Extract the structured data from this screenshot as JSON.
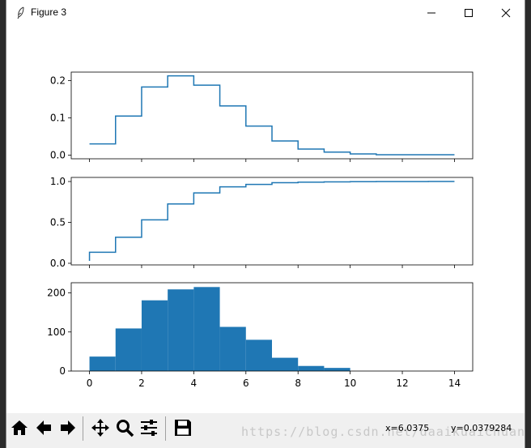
{
  "window": {
    "title": "Figure 3",
    "icon": "feather-icon",
    "controls": [
      "minimize-icon",
      "maximize-icon",
      "close-icon"
    ]
  },
  "toolbar": {
    "buttons": [
      "home-icon",
      "back-icon",
      "forward-icon",
      "pan-icon",
      "zoom-icon",
      "configure-subplots-icon",
      "save-icon"
    ],
    "x_readout": "x=6.0375",
    "y_readout": "y=0.0379284",
    "watermark": "https://blog.csdn.net/daaikuaichuan"
  },
  "colors": {
    "series": "#1f77b4",
    "axes": "#000000"
  },
  "chart_data": [
    {
      "type": "line",
      "step": "post",
      "x": [
        0,
        1,
        2,
        3,
        4,
        5,
        6,
        7,
        8,
        9,
        10,
        11,
        12,
        13,
        14
      ],
      "values": [
        0.03,
        0.105,
        0.183,
        0.213,
        0.188,
        0.132,
        0.078,
        0.038,
        0.016,
        0.008,
        0.003,
        0.001,
        0.001,
        0.001,
        0.001
      ],
      "start_y": 0.03,
      "xlim": [
        -0.7,
        14.7
      ],
      "ylim": [
        -0.01,
        0.223
      ],
      "yticks": [
        "0.0",
        "0.1",
        "0.2"
      ],
      "ytick_values": [
        0.0,
        0.1,
        0.2
      ],
      "show_xticklabels": false
    },
    {
      "type": "line",
      "step": "post",
      "x": [
        0,
        1,
        2,
        3,
        4,
        5,
        6,
        7,
        8,
        9,
        10,
        11,
        12,
        13,
        14
      ],
      "values": [
        0.135,
        0.318,
        0.531,
        0.725,
        0.86,
        0.935,
        0.965,
        0.985,
        0.992,
        0.996,
        0.998,
        0.999,
        0.999,
        1.0,
        1.0
      ],
      "start_y": 0.03,
      "xlim": [
        -0.7,
        14.7
      ],
      "ylim": [
        -0.02,
        1.05
      ],
      "yticks": [
        "0.0",
        "0.5",
        "1.0"
      ],
      "ytick_values": [
        0.0,
        0.5,
        1.0
      ],
      "show_xticklabels": false
    },
    {
      "type": "bar",
      "bin_edges": [
        0,
        1,
        2,
        3,
        4,
        5,
        6,
        7,
        8,
        9,
        10
      ],
      "values": [
        37,
        109,
        181,
        209,
        215,
        113,
        80,
        34,
        13,
        8
      ],
      "xlim": [
        -0.7,
        14.7
      ],
      "ylim": [
        0,
        226
      ],
      "yticks": [
        "0",
        "100",
        "200"
      ],
      "ytick_values": [
        0,
        100,
        200
      ],
      "xticks": [
        "0",
        "2",
        "4",
        "6",
        "8",
        "10",
        "12",
        "14"
      ],
      "xtick_values": [
        0,
        2,
        4,
        6,
        8,
        10,
        12,
        14
      ],
      "show_xticklabels": true
    }
  ]
}
